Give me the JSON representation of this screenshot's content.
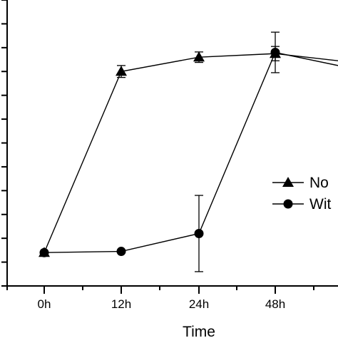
{
  "chart_data": {
    "type": "line",
    "title": "",
    "xlabel": "Time",
    "ylabel": "",
    "categories": [
      "0h",
      "12h",
      "24h",
      "48h"
    ],
    "ylim": [
      0,
      12
    ],
    "grid": false,
    "legend_position": "right-middle",
    "series": [
      {
        "name": "No",
        "marker": "triangle",
        "color": "#000000",
        "values": [
          1.4,
          9.0,
          9.6,
          9.75
        ],
        "error": [
          0,
          0.25,
          0.22,
          0.3
        ],
        "continues_beyond_last": 9.45
      },
      {
        "name": "Wit",
        "marker": "circle",
        "color": "#000000",
        "values": [
          1.4,
          1.45,
          2.2,
          9.8
        ],
        "error": [
          0,
          0,
          1.6,
          0.85
        ],
        "continues_beyond_last": 9.25
      }
    ]
  }
}
